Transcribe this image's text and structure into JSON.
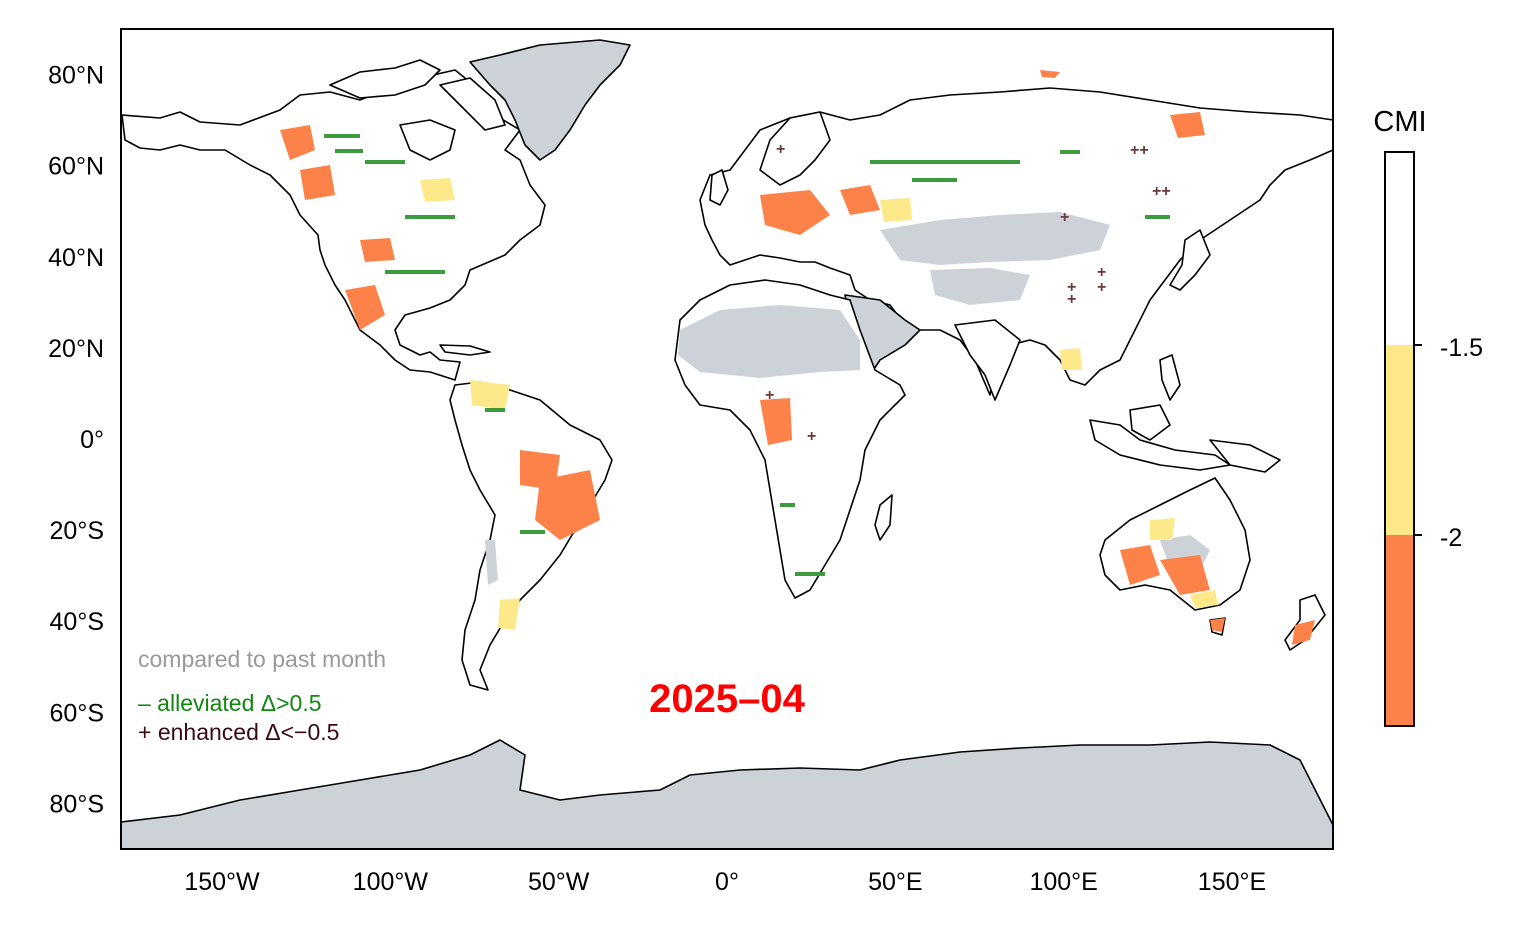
{
  "map": {
    "date_label": "2025–04",
    "colors": {
      "land": "#ffffff",
      "ocean": "#ffffff",
      "no_data": "#cdd2d8",
      "cmi_below_minus2": "#fd8249",
      "cmi_minus2_to_minus1_5": "#fde98a",
      "cmi_above_minus1_5": "#ffffff",
      "coastline": "#000000",
      "alleviated": "#3c9b3c",
      "enhanced": "#6b3a3a"
    },
    "lon_ticks": [
      {
        "lon": -150,
        "label": "150°W"
      },
      {
        "lon": -100,
        "label": "100°W"
      },
      {
        "lon": -50,
        "label": "50°W"
      },
      {
        "lon": 0,
        "label": "0°"
      },
      {
        "lon": 50,
        "label": "50°E"
      },
      {
        "lon": 100,
        "label": "100°E"
      },
      {
        "lon": 150,
        "label": "150°E"
      }
    ],
    "lat_ticks": [
      {
        "lat": 80,
        "label": "80°N"
      },
      {
        "lat": 60,
        "label": "60°N"
      },
      {
        "lat": 40,
        "label": "40°N"
      },
      {
        "lat": 20,
        "label": "20°N"
      },
      {
        "lat": 0,
        "label": "0°"
      },
      {
        "lat": -20,
        "label": "20°S"
      },
      {
        "lat": -40,
        "label": "40°S"
      },
      {
        "lat": -60,
        "label": "60°S"
      },
      {
        "lat": -80,
        "label": "80°S"
      }
    ]
  },
  "colorbar": {
    "title": "CMI",
    "ticks": [
      {
        "value": -1.5,
        "label": "-1.5"
      },
      {
        "value": -2,
        "label": "-2"
      }
    ]
  },
  "legend": {
    "comparison_note": "compared to past month",
    "alleviated_label": "– alleviated  Δ>0.5",
    "enhanced_label": "+ enhanced Δ<−0.5",
    "alleviated_color": "#118811",
    "enhanced_color": "#3a0a12",
    "note_color": "#999999"
  }
}
